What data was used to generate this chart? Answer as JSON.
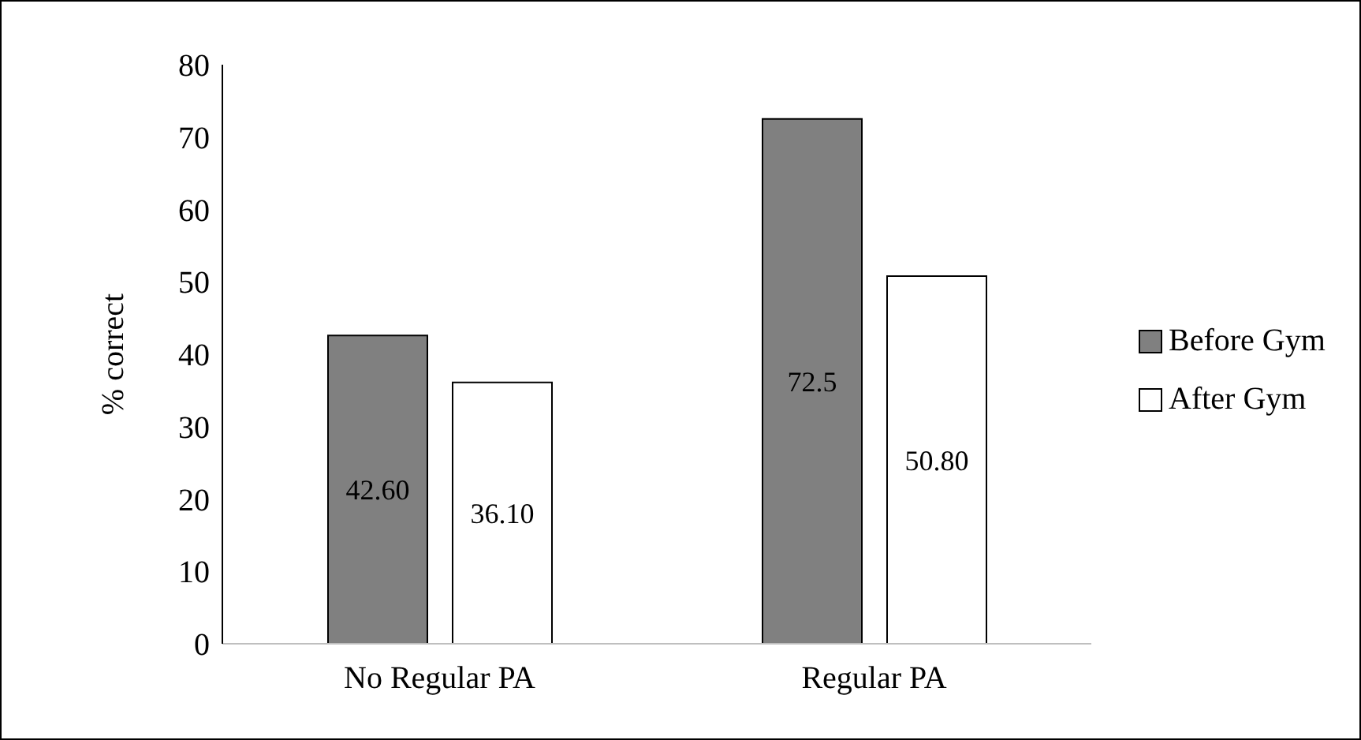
{
  "chart_data": {
    "type": "bar",
    "ylabel": "% correct",
    "categories": [
      "No Regular PA",
      "Regular PA"
    ],
    "series": [
      {
        "name": "Before Gym",
        "color": "#808080",
        "values": [
          42.6,
          72.5
        ],
        "value_labels": [
          "42.60",
          "72.5"
        ]
      },
      {
        "name": "After Gym",
        "color": "#ffffff",
        "values": [
          36.1,
          50.8
        ],
        "value_labels": [
          "36.10",
          "50.80"
        ]
      }
    ],
    "ylim": [
      0,
      80
    ],
    "yticks": [
      0,
      10,
      20,
      30,
      40,
      50,
      60,
      70,
      80
    ],
    "grid": false,
    "legend": "right"
  }
}
